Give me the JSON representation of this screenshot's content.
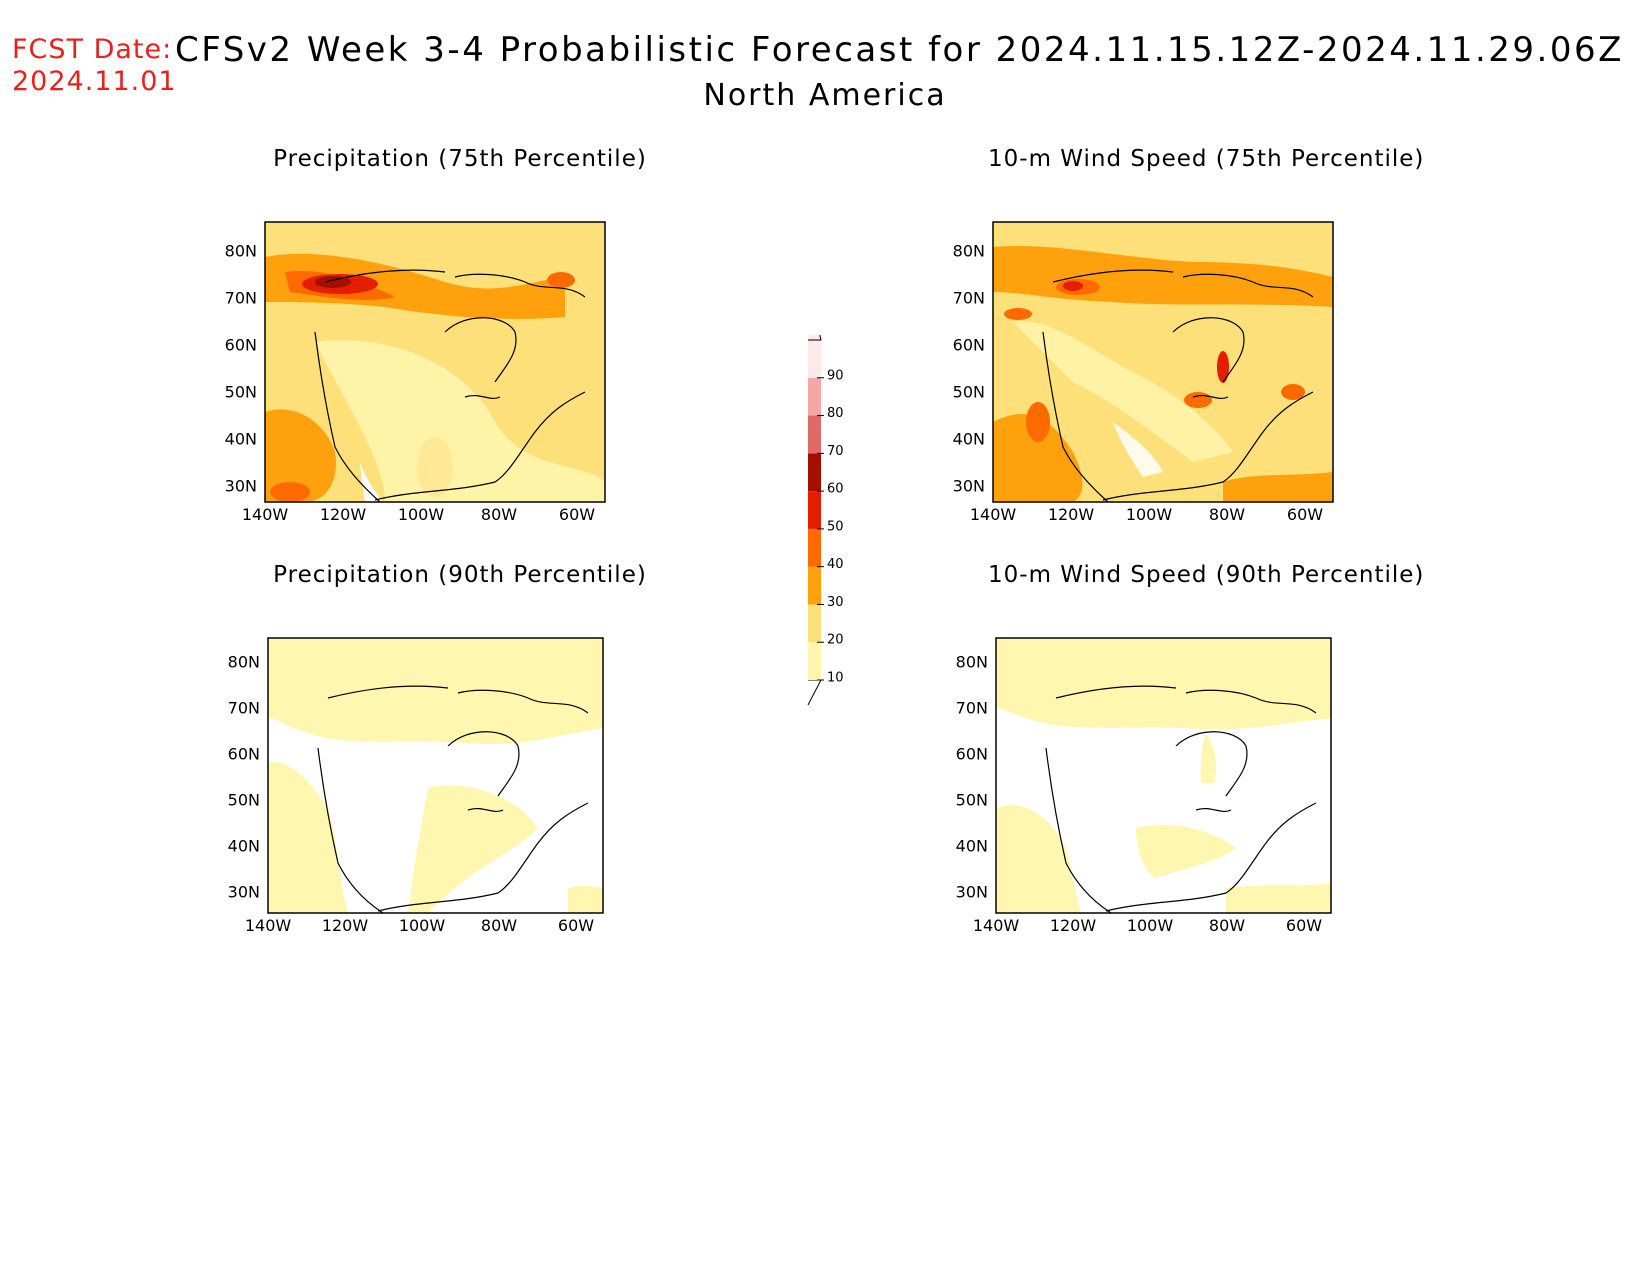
{
  "header": {
    "fcst_label": "FCST Date:",
    "fcst_date": "2024.11.01",
    "title": "CFSv2 Week 3-4 Probabilistic Forecast for 2024.11.15.12Z-2024.11.29.06Z",
    "subtitle": "North America"
  },
  "panels": [
    {
      "title": "Precipitation (75th Percentile)",
      "variable": "precipitation",
      "percentile": 75
    },
    {
      "title": "10-m Wind Speed (75th Percentile)",
      "variable": "wind_speed_10m",
      "percentile": 75
    },
    {
      "title": "Precipitation (90th Percentile)",
      "variable": "precipitation",
      "percentile": 90
    },
    {
      "title": "10-m Wind Speed (90th Percentile)",
      "variable": "wind_speed_10m",
      "percentile": 90
    }
  ],
  "axes": {
    "lat_ticks": [
      "30N",
      "40N",
      "50N",
      "60N",
      "70N",
      "80N"
    ],
    "lon_ticks": [
      "140W",
      "120W",
      "100W",
      "80W",
      "60W"
    ]
  },
  "colorbar": {
    "labels": [
      "10",
      "20",
      "30",
      "40",
      "50",
      "60",
      "70",
      "80",
      "90"
    ],
    "colors": [
      "#fff6b0",
      "#fde07a",
      "#ffa10d",
      "#ff6a00",
      "#e51e00",
      "#a30f00",
      "#e16a66",
      "#f5a7a7",
      "#fde8ea"
    ],
    "unit": "%"
  },
  "colors": {
    "fcst_date": "#e8211b",
    "background": "#ffffff",
    "coastline": "#000000"
  }
}
